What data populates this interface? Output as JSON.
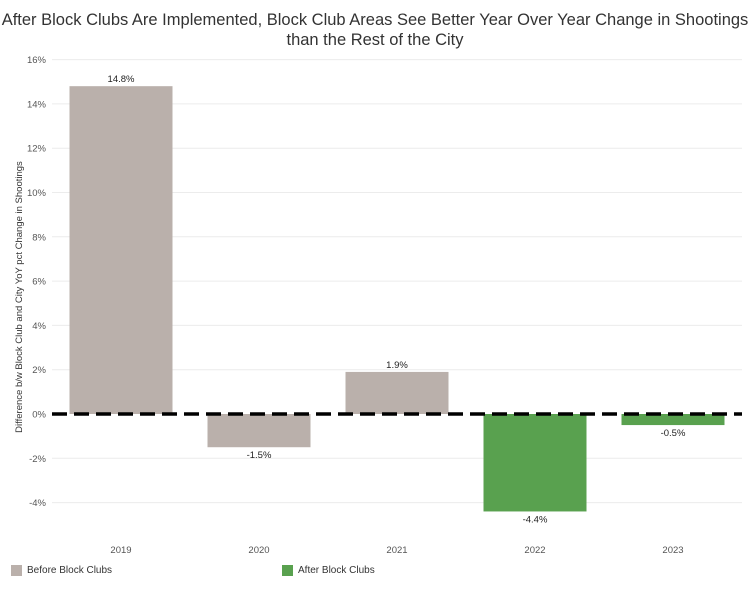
{
  "chart_data": {
    "type": "bar",
    "title": "After Block Clubs Are Implemented, Block Club Areas See Better Year Over Year Change in Shootings than the Rest of the City",
    "xlabel": "",
    "ylabel": "Difference b/w Block Club and City YoY pct Change in Shootings",
    "categories": [
      "2019",
      "2020",
      "2021",
      "2022",
      "2023"
    ],
    "values": [
      14.8,
      -1.5,
      1.9,
      -4.4,
      -0.5
    ],
    "data_labels": [
      "14.8%",
      "-1.5%",
      "1.9%",
      "-4.4%",
      "-0.5%"
    ],
    "groups": [
      "Before Block Clubs",
      "Before Block Clubs",
      "Before Block Clubs",
      "After Block Clubs",
      "After Block Clubs"
    ],
    "ylim": [
      -6,
      16
    ],
    "yticks": [
      16,
      14,
      12,
      10,
      8,
      6,
      4,
      2,
      0,
      -2,
      -4
    ],
    "ytick_labels": [
      "16%",
      "14%",
      "12%",
      "10%",
      "8%",
      "6%",
      "4%",
      "2%",
      "0%",
      "-2%",
      "-4%"
    ],
    "grid": true,
    "reference_line": 0,
    "legend": {
      "placement": "bottom-left",
      "items": [
        {
          "label": "Before Block Clubs",
          "color": "#bab0ab"
        },
        {
          "label": "After Block Clubs",
          "color": "#59a14f"
        }
      ]
    }
  }
}
